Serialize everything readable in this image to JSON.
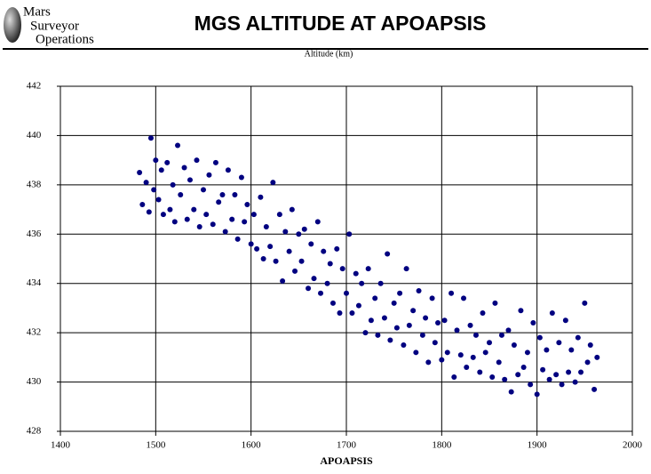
{
  "logo": {
    "lines": [
      "Mars",
      "Surveyor",
      "Operations"
    ]
  },
  "chart_data": {
    "type": "scatter",
    "title": "MGS ALTITUDE AT APOAPSIS",
    "subtitle": "Altitude (km)",
    "x_label": "APOAPSIS",
    "color": "#000080",
    "grid": true,
    "xlim": [
      1400,
      2000
    ],
    "xticks": [
      1400,
      1500,
      1600,
      1700,
      1800,
      1900,
      2000
    ],
    "ylim": [
      428,
      442
    ],
    "yticks": [
      428,
      430,
      432,
      434,
      436,
      438,
      440,
      442
    ],
    "x": [
      1483,
      1486,
      1490,
      1493,
      1495,
      1498,
      1500,
      1503,
      1506,
      1508,
      1512,
      1515,
      1518,
      1520,
      1523,
      1526,
      1530,
      1533,
      1536,
      1540,
      1543,
      1546,
      1550,
      1553,
      1556,
      1560,
      1563,
      1566,
      1570,
      1573,
      1576,
      1580,
      1583,
      1586,
      1590,
      1593,
      1596,
      1600,
      1603,
      1606,
      1610,
      1613,
      1616,
      1620,
      1623,
      1626,
      1630,
      1633,
      1636,
      1640,
      1643,
      1646,
      1650,
      1653,
      1656,
      1660,
      1663,
      1666,
      1670,
      1673,
      1676,
      1680,
      1683,
      1686,
      1690,
      1693,
      1696,
      1700,
      1703,
      1706,
      1710,
      1713,
      1716,
      1720,
      1723,
      1726,
      1730,
      1733,
      1736,
      1740,
      1743,
      1746,
      1750,
      1753,
      1756,
      1760,
      1763,
      1766,
      1770,
      1773,
      1776,
      1780,
      1783,
      1786,
      1790,
      1793,
      1796,
      1800,
      1803,
      1806,
      1810,
      1813,
      1816,
      1820,
      1823,
      1826,
      1830,
      1833,
      1836,
      1840,
      1843,
      1846,
      1850,
      1853,
      1856,
      1860,
      1863,
      1866,
      1870,
      1873,
      1876,
      1880,
      1883,
      1886,
      1890,
      1893,
      1896,
      1900,
      1903,
      1906,
      1910,
      1913,
      1916,
      1920,
      1923,
      1926,
      1930,
      1933,
      1936,
      1940,
      1943,
      1946,
      1950,
      1953,
      1956,
      1960,
      1963
    ],
    "values": [
      438.5,
      437.2,
      438.1,
      436.9,
      439.9,
      437.8,
      439.0,
      437.4,
      438.6,
      436.8,
      438.9,
      437.0,
      438.0,
      436.5,
      439.6,
      437.6,
      438.7,
      436.6,
      438.2,
      437.0,
      439.0,
      436.3,
      437.8,
      436.8,
      438.4,
      436.4,
      438.9,
      437.3,
      437.6,
      436.1,
      438.6,
      436.6,
      437.6,
      435.8,
      438.3,
      436.5,
      437.2,
      435.6,
      436.8,
      435.4,
      437.5,
      435.0,
      436.3,
      435.5,
      438.1,
      434.9,
      436.8,
      434.1,
      436.1,
      435.3,
      437.0,
      434.5,
      436.0,
      434.9,
      436.2,
      433.8,
      435.6,
      434.2,
      436.5,
      433.6,
      435.3,
      434.0,
      434.8,
      433.2,
      435.4,
      432.8,
      434.6,
      433.6,
      436.0,
      432.8,
      434.4,
      433.1,
      434.0,
      432.0,
      434.6,
      432.5,
      433.4,
      431.9,
      434.0,
      432.6,
      435.2,
      431.7,
      433.2,
      432.2,
      433.6,
      431.5,
      434.6,
      432.3,
      432.9,
      431.2,
      433.7,
      431.9,
      432.6,
      430.8,
      433.4,
      431.6,
      432.4,
      430.9,
      432.5,
      431.2,
      433.6,
      430.2,
      432.1,
      431.1,
      433.4,
      430.6,
      432.3,
      431.0,
      431.9,
      430.4,
      432.8,
      431.2,
      431.6,
      430.2,
      433.2,
      430.8,
      431.9,
      430.1,
      432.1,
      429.6,
      431.5,
      430.3,
      432.9,
      430.6,
      431.2,
      429.9,
      432.4,
      429.5,
      431.8,
      430.5,
      431.3,
      430.1,
      432.8,
      430.3,
      431.6,
      429.9,
      432.5,
      430.4,
      431.3,
      430.0,
      431.8,
      430.4,
      433.2,
      430.8,
      431.5,
      429.7,
      431.0
    ]
  }
}
